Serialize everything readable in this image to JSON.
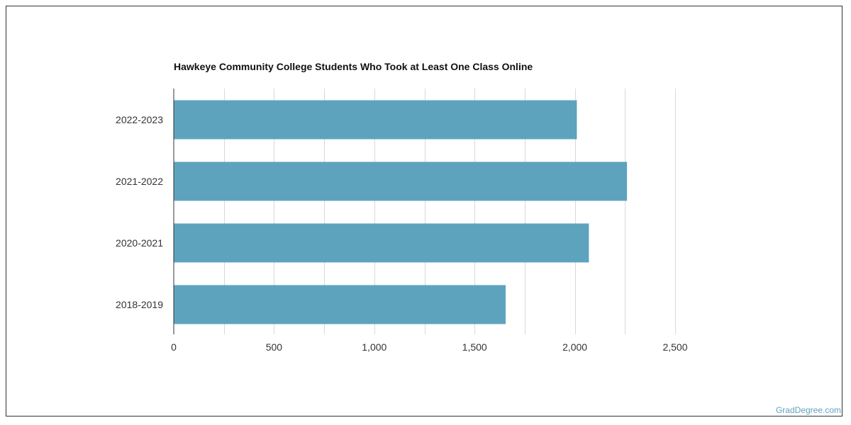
{
  "chart_data": {
    "type": "bar",
    "orientation": "horizontal",
    "title": "Hawkeye Community College Students Who Took at Least One Class Online",
    "categories": [
      "2022-2023",
      "2021-2022",
      "2020-2021",
      "2018-2019"
    ],
    "values": [
      2010,
      2260,
      2070,
      1655
    ],
    "xlabel": "",
    "ylabel": "",
    "xlim": [
      0,
      2500
    ],
    "x_ticks": [
      0,
      500,
      1000,
      1500,
      2000,
      2500
    ],
    "x_tick_labels": [
      "0",
      "500",
      "1,000",
      "1,500",
      "2,000",
      "2,500"
    ],
    "grid": true,
    "bar_color": "#5ea3be"
  },
  "watermark": "GradDegree.com"
}
